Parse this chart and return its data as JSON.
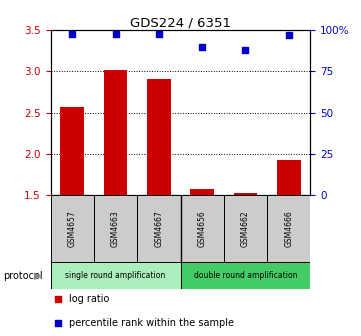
{
  "title": "GDS224 / 6351",
  "samples": [
    "GSM4657",
    "GSM4663",
    "GSM4667",
    "GSM4656",
    "GSM4662",
    "GSM4666"
  ],
  "log_ratio": [
    2.57,
    3.02,
    2.91,
    1.57,
    1.52,
    1.92
  ],
  "percentile_rank": [
    98,
    98,
    98,
    90,
    88,
    97
  ],
  "ylim_left": [
    1.5,
    3.5
  ],
  "ylim_right": [
    0,
    100
  ],
  "bar_color": "#cc0000",
  "scatter_color": "#0000cc",
  "yticks_left": [
    1.5,
    2.0,
    2.5,
    3.0,
    3.5
  ],
  "yticks_right": [
    0,
    25,
    50,
    75,
    100
  ],
  "protocol_groups": [
    {
      "label": "single round amplification",
      "n": 3,
      "color": "#aaeebb"
    },
    {
      "label": "double round amplification",
      "n": 3,
      "color": "#44cc66"
    }
  ],
  "legend_items": [
    {
      "label": "log ratio",
      "color": "#cc0000"
    },
    {
      "label": "percentile rank within the sample",
      "color": "#0000cc"
    }
  ],
  "protocol_label": "protocol",
  "dotted_yticks": [
    2.0,
    2.5,
    3.0
  ],
  "background_color": "#ffffff",
  "n_samples": 6
}
